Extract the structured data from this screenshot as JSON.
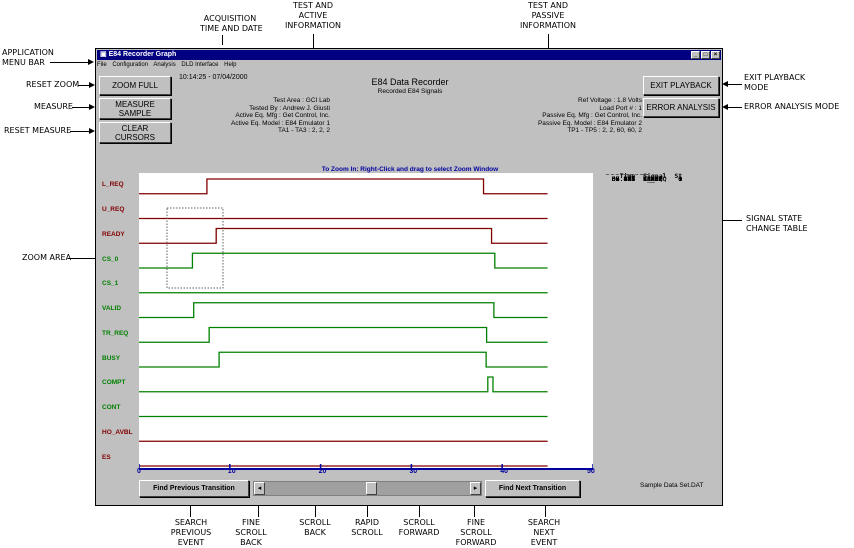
{
  "annotations": {
    "acquisition": "ACQUISITION\nTIME AND DATE",
    "test_active": "TEST AND\nACTIVE\nINFORMATION",
    "test_passive": "TEST AND\nPASSIVE\nINFORMATION",
    "app_menu_bar": "APPLICATION\nMENU BAR",
    "reset_zoom": "RESET ZOOM",
    "measure": "MEASURE",
    "reset_measure": "RESET MEASURE",
    "zoom_area": "ZOOM AREA",
    "exit_playback_mode": "EXIT PLAYBACK\nMODE",
    "error_analysis_mode": "ERROR ANALYSIS MODE",
    "signal_state_table": "SIGNAL STATE\nCHANGE TABLE",
    "search_previous": "SEARCH\nPREVIOUS\nEVENT",
    "fine_scroll_back": "FINE\nSCROLL\nBACK",
    "scroll_back": "SCROLL\nBACK",
    "rapid_scroll": "RAPID\nSCROLL",
    "scroll_forward": "SCROLL\nFORWARD",
    "fine_scroll_forward": "FINE\nSCROLL\nFORWARD",
    "search_next": "SEARCH\nNEXT\nEVENT"
  },
  "window": {
    "title": "E84 Recorder Graph",
    "menu": [
      "File",
      "Configuration",
      "Analysis",
      "DLD Interface",
      "Help"
    ],
    "timestamp": "10:14:25 - 07/04/2000",
    "header_title": "E84 Data Recorder",
    "header_sub": "Recorded E84 Signals"
  },
  "buttons": {
    "zoom_full": "ZOOM FULL",
    "measure_sample": "MEASURE\nSAMPLE",
    "clear_cursors": "CLEAR\nCURSORS",
    "exit_playback": "EXIT PLAYBACK",
    "error_analysis": "ERROR ANALYSIS",
    "find_previous": "Find Previous Transition",
    "find_next": "Find Next Transition"
  },
  "active_info": [
    "Test Area : GCI Lab",
    "Tested By : Andrew J. Giusti",
    "Active Eq. Mfg : Get Control, Inc.",
    "Active Eq. Model : E84 Emulator 1",
    "TA1 - TA3 : 2, 2, 2"
  ],
  "passive_info": [
    "Ref Voltage : 1.8 Volts",
    "Load Port # : 1",
    "Passive Eq. Mfg : Get Control, Inc.",
    "Passive Eq. Model : E84 Emulator 2",
    "TP1 - TP5 : 2, 2, 60, 60, 2"
  ],
  "zoom_hint": "To Zoom In:  Right-Click and drag to select Zoom Window",
  "dataset": "Sample Data Set.DAT",
  "scroll_position": 0.52,
  "colors": {
    "active": "#800000",
    "passive": "#008000",
    "axis": "#0000a0"
  },
  "state_table": {
    "headers": [
      "Time",
      "Signal",
      "St"
    ],
    "rows": [
      [
        "05.884",
        "CS_0",
        "1"
      ],
      [
        "06.025",
        "VALID",
        "1"
      ],
      [
        "07.480",
        "L_REQ",
        "1"
      ],
      [
        "07.727",
        "TR_REQ",
        "1"
      ],
      [
        "08.502",
        "READY",
        "1"
      ],
      [
        "08.821",
        "BUSY",
        "1"
      ],
      [
        "37.944",
        "L_REQ",
        "0"
      ],
      [
        "38.231",
        "BUSY",
        "0"
      ],
      [
        "38.283",
        "TR_REQ",
        "0"
      ],
      [
        "38.415",
        "COMPT",
        "1"
      ],
      [
        "38.828",
        "READY",
        "0"
      ],
      [
        "38.984",
        "COMPT",
        "0"
      ],
      [
        "39.085",
        "VALID",
        "0"
      ],
      [
        "39.185",
        "CS_0",
        "0"
      ]
    ]
  },
  "chart_data": {
    "type": "line",
    "x_ticks": [
      "0",
      "10",
      "20",
      "30",
      "40",
      "50"
    ],
    "xlim": [
      0,
      50
    ],
    "signals": [
      {
        "name": "L_REQ",
        "group": "active",
        "transitions": [
          [
            0,
            0
          ],
          [
            7.48,
            1
          ],
          [
            37.944,
            0
          ],
          [
            45,
            0
          ]
        ]
      },
      {
        "name": "U_REQ",
        "group": "active",
        "transitions": [
          [
            0,
            0
          ],
          [
            45,
            0
          ]
        ]
      },
      {
        "name": "READY",
        "group": "active",
        "transitions": [
          [
            0,
            0
          ],
          [
            8.502,
            1
          ],
          [
            38.828,
            0
          ],
          [
            45,
            0
          ]
        ]
      },
      {
        "name": "CS_0",
        "group": "passive",
        "transitions": [
          [
            0,
            0
          ],
          [
            5.884,
            1
          ],
          [
            39.185,
            0
          ],
          [
            45,
            0
          ]
        ]
      },
      {
        "name": "CS_1",
        "group": "passive",
        "transitions": [
          [
            0,
            0
          ],
          [
            45,
            0
          ]
        ]
      },
      {
        "name": "VALID",
        "group": "passive",
        "transitions": [
          [
            0,
            0
          ],
          [
            6.025,
            1
          ],
          [
            39.085,
            0
          ],
          [
            45,
            0
          ]
        ]
      },
      {
        "name": "TR_REQ",
        "group": "passive",
        "transitions": [
          [
            0,
            0
          ],
          [
            7.727,
            1
          ],
          [
            38.283,
            0
          ],
          [
            45,
            0
          ]
        ]
      },
      {
        "name": "BUSY",
        "group": "passive",
        "transitions": [
          [
            0,
            0
          ],
          [
            8.821,
            1
          ],
          [
            38.231,
            0
          ],
          [
            45,
            0
          ]
        ]
      },
      {
        "name": "COMPT",
        "group": "passive",
        "transitions": [
          [
            0,
            0
          ],
          [
            38.415,
            1
          ],
          [
            38.984,
            0
          ],
          [
            45,
            0
          ]
        ]
      },
      {
        "name": "CONT",
        "group": "passive",
        "transitions": [
          [
            0,
            0
          ],
          [
            45,
            0
          ]
        ]
      },
      {
        "name": "HO_AVBL",
        "group": "active",
        "transitions": [
          [
            0,
            0
          ],
          [
            45,
            0
          ]
        ]
      },
      {
        "name": "ES",
        "group": "active",
        "transitions": [
          [
            0,
            0
          ],
          [
            45,
            0
          ]
        ]
      }
    ]
  }
}
